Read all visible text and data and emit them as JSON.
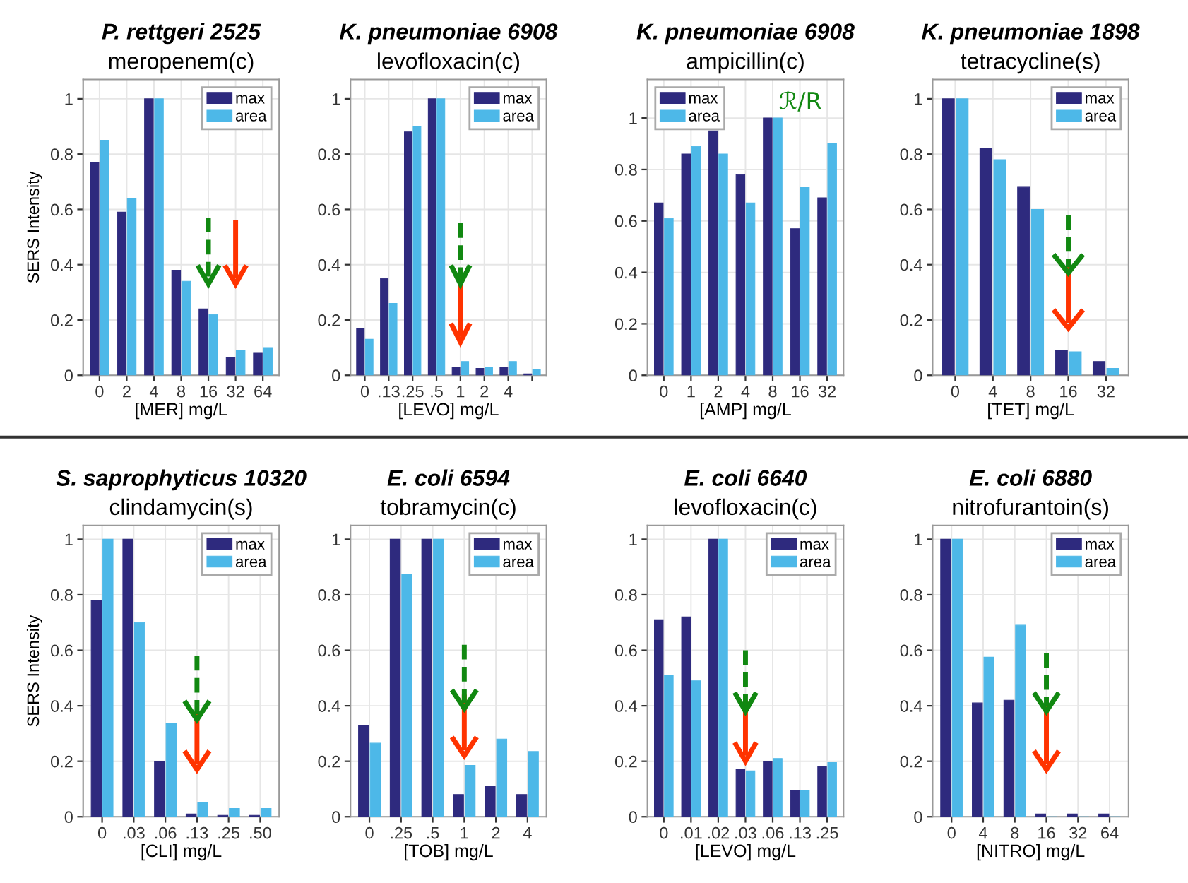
{
  "chart_data": [
    {
      "type": "bar",
      "title": "P. rettgeri 2525",
      "subtitle": "meropenem(c)",
      "xlabel": "[MER] mg/L",
      "ylabel": "SERS Intensity",
      "categories": [
        "0",
        "2",
        "4",
        "8",
        "16",
        "32",
        "64"
      ],
      "series": [
        {
          "name": "max",
          "color": "#2e2a7e",
          "values": [
            0.77,
            0.59,
            1,
            0.38,
            0.24,
            0.065,
            0.08
          ]
        },
        {
          "name": "area",
          "color": "#4db8e8",
          "values": [
            0.85,
            0.64,
            1,
            0.34,
            0.22,
            0.09,
            0.1
          ]
        }
      ],
      "ylim": [
        0,
        1.07
      ],
      "yticks": [
        0,
        0.2,
        0.4,
        0.6,
        0.8,
        1
      ],
      "grid": true,
      "legend": "top right"
    },
    {
      "type": "bar",
      "title": "K. pneumoniae 6908",
      "subtitle": "levofloxacin(c)",
      "xlabel": "[LEVO] mg/L",
      "categories": [
        "0",
        ".13",
        ".25",
        ".5",
        "1",
        "2",
        "4",
        null
      ],
      "series": [
        {
          "name": "max",
          "color": "#2e2a7e",
          "values": [
            0.17,
            0.35,
            0.88,
            1,
            0.03,
            0.025,
            0.03,
            0.005
          ]
        },
        {
          "name": "area",
          "color": "#4db8e8",
          "values": [
            0.13,
            0.26,
            0.9,
            1,
            0.05,
            0.03,
            0.05,
            0.02
          ]
        }
      ],
      "ylim": [
        0,
        1.07
      ],
      "yticks": [
        0,
        0.2,
        0.4,
        0.6,
        0.8,
        1
      ],
      "grid": true,
      "legend": "top right"
    },
    {
      "type": "bar",
      "title": "K. pneumoniae 6908",
      "subtitle": "ampicillin(c)",
      "xlabel": "[AMP] mg/L",
      "annotations": [
        "ℛ/R"
      ],
      "categories": [
        "0",
        "1",
        "2",
        "4",
        "8",
        "16",
        "32"
      ],
      "series": [
        {
          "name": "max",
          "color": "#2e2a7e",
          "values": [
            0.67,
            0.86,
            0.95,
            0.78,
            1,
            0.57,
            0.69
          ]
        },
        {
          "name": "area",
          "color": "#4db8e8",
          "values": [
            0.61,
            0.89,
            0.86,
            0.67,
            1,
            0.73,
            0.9
          ]
        }
      ],
      "ylim": [
        0,
        1.15
      ],
      "yticks": [
        0,
        0.2,
        0.4,
        0.6,
        0.8,
        1
      ],
      "grid": true,
      "legend": "top left"
    },
    {
      "type": "bar",
      "title": "K. pneumoniae 1898",
      "subtitle": "tetracycline(s)",
      "xlabel": "[TET] mg/L",
      "categories": [
        "0",
        "4",
        "8",
        "16",
        "32"
      ],
      "series": [
        {
          "name": "max",
          "color": "#2e2a7e",
          "values": [
            1,
            0.82,
            0.68,
            0.09,
            0.05
          ]
        },
        {
          "name": "area",
          "color": "#4db8e8",
          "values": [
            1,
            0.78,
            0.6,
            0.085,
            0.025
          ]
        }
      ],
      "ylim": [
        0,
        1.07
      ],
      "yticks": [
        0,
        0.2,
        0.4,
        0.6,
        0.8,
        1
      ],
      "grid": true,
      "legend": "top right"
    },
    {
      "type": "bar",
      "title": "S. saprophyticus 10320",
      "subtitle": "clindamycin(s)",
      "xlabel": "[CLI] mg/L",
      "ylabel": "SERS Intensity",
      "categories": [
        "0",
        ".03",
        ".06",
        ".13",
        ".25",
        ".50"
      ],
      "series": [
        {
          "name": "max",
          "color": "#2e2a7e",
          "values": [
            0.78,
            1,
            0.2,
            0.01,
            0.005,
            0.005
          ]
        },
        {
          "name": "area",
          "color": "#4db8e8",
          "values": [
            1,
            0.7,
            0.335,
            0.05,
            0.03,
            0.03
          ]
        }
      ],
      "ylim": [
        0,
        1.05
      ],
      "yticks": [
        0,
        0.2,
        0.4,
        0.6,
        0.8,
        1
      ],
      "grid": true,
      "legend": "top right"
    },
    {
      "type": "bar",
      "title": "E. coli 6594",
      "subtitle": "tobramycin(c)",
      "xlabel": "[TOB] mg/L",
      "categories": [
        "0",
        ".25",
        ".5",
        "1",
        "2",
        "4"
      ],
      "series": [
        {
          "name": "max",
          "color": "#2e2a7e",
          "values": [
            0.33,
            1,
            1,
            0.08,
            0.11,
            0.08
          ]
        },
        {
          "name": "area",
          "color": "#4db8e8",
          "values": [
            0.265,
            0.875,
            1,
            0.185,
            0.28,
            0.235
          ]
        }
      ],
      "ylim": [
        0,
        1.05
      ],
      "yticks": [
        0,
        0.2,
        0.4,
        0.6,
        0.8,
        1
      ],
      "grid": true,
      "legend": "top right"
    },
    {
      "type": "bar",
      "title": "E. coli 6640",
      "subtitle": "levofloxacin(c)",
      "xlabel": "[LEVO] mg/L",
      "categories": [
        "0",
        ".01",
        ".02",
        ".03",
        ".06",
        ".13",
        ".25"
      ],
      "series": [
        {
          "name": "max",
          "color": "#2e2a7e",
          "values": [
            0.71,
            0.72,
            1,
            0.17,
            0.2,
            0.095,
            0.18
          ]
        },
        {
          "name": "area",
          "color": "#4db8e8",
          "values": [
            0.51,
            0.49,
            1,
            0.165,
            0.21,
            0.095,
            0.195
          ]
        }
      ],
      "ylim": [
        0,
        1.05
      ],
      "yticks": [
        0,
        0.2,
        0.4,
        0.6,
        0.8,
        1
      ],
      "grid": true,
      "legend": "top right"
    },
    {
      "type": "bar",
      "title": "E. coli 6880",
      "subtitle": "nitrofurantoin(s)",
      "xlabel": "[NITRO] mg/L",
      "categories": [
        "0",
        "4",
        "8",
        "16",
        "32",
        "64"
      ],
      "series": [
        {
          "name": "max",
          "color": "#2e2a7e",
          "values": [
            1,
            0.41,
            0.42,
            0.01,
            0.01,
            0.01
          ]
        },
        {
          "name": "area",
          "color": "#4db8e8",
          "values": [
            1,
            0.575,
            0.69,
            0,
            0,
            0
          ]
        }
      ],
      "ylim": [
        0,
        1.05
      ],
      "yticks": [
        0,
        0.2,
        0.4,
        0.6,
        0.8,
        1
      ],
      "grid": true,
      "legend": "top right"
    }
  ]
}
